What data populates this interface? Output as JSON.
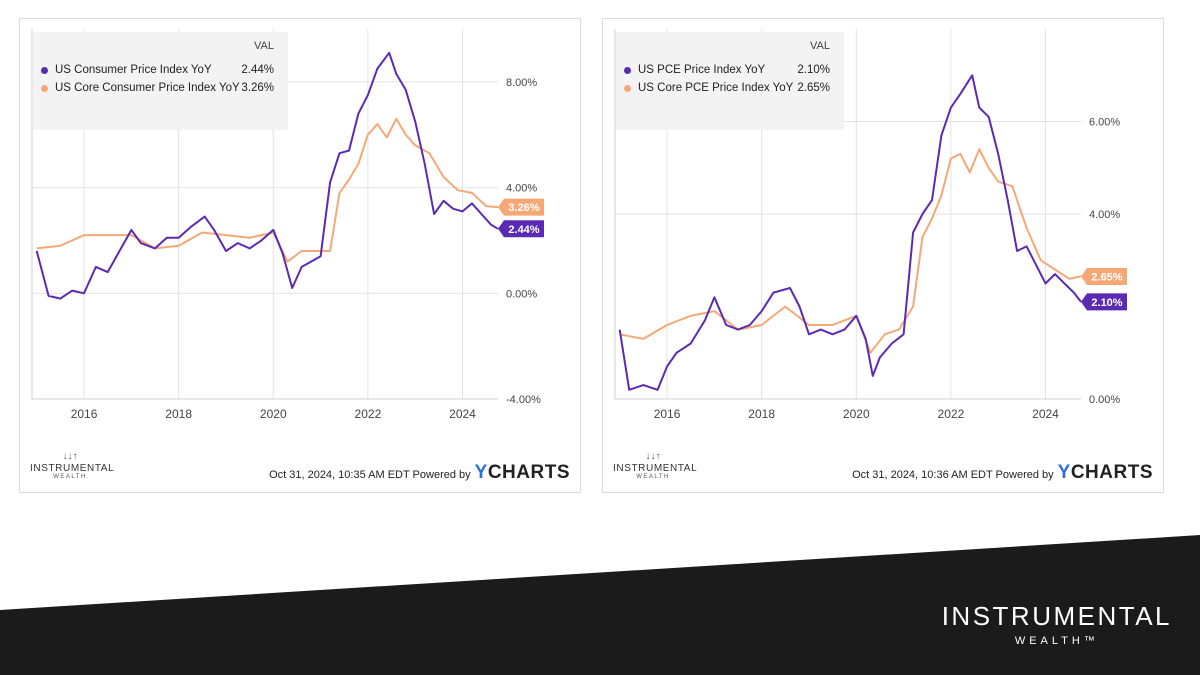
{
  "charts": [
    {
      "legend": {
        "header": "VAL",
        "series": [
          {
            "label": "US Consumer Price Index YoY",
            "value": "2.44%"
          },
          {
            "label": "US Core Consumer Price Index YoY",
            "value": "3.26%"
          }
        ]
      },
      "footer": {
        "timestamp": "Oct 31, 2024, 10:35 AM EDT Powered by",
        "brand_y": "Y",
        "brand_rest": "CHARTS"
      }
    },
    {
      "legend": {
        "header": "VAL",
        "series": [
          {
            "label": "US PCE Price Index YoY",
            "value": "2.10%"
          },
          {
            "label": "US Core PCE Price Index YoY",
            "value": "2.65%"
          }
        ]
      },
      "footer": {
        "timestamp": "Oct 31, 2024, 10:36 AM EDT Powered by",
        "brand_y": "Y",
        "brand_rest": "CHARTS"
      }
    }
  ],
  "mini_logo": {
    "arrows": "↓↓↑",
    "line1": "INSTRUMENTAL",
    "line2": "WEALTH"
  },
  "brand": {
    "line1": "INSTRUMENTAL",
    "line2": "WEALTH™"
  },
  "colors": {
    "purple": "#5b2ab5",
    "orange": "#f5a875",
    "band": "#1b1b1b",
    "grid": "#e2e2e2"
  },
  "chart_data": [
    {
      "type": "line",
      "title": "",
      "xlabel": "",
      "ylabel": "",
      "xlim": [
        2014.9,
        2024.75
      ],
      "ylim": [
        -4.0,
        10.0
      ],
      "y_ticks": [
        8.0,
        4.0,
        0.0,
        -4.0
      ],
      "y_tick_labels": [
        "8.00%",
        "4.00%",
        "0.00%",
        "-4.00%"
      ],
      "x_ticks": [
        2016,
        2018,
        2020,
        2022,
        2024
      ],
      "x_tick_labels": [
        "2016",
        "2018",
        "2020",
        "2022",
        "2024"
      ],
      "grid": true,
      "legend_position": "top-left",
      "series": [
        {
          "name": "US Consumer Price Index YoY",
          "color": "#5b2ab5",
          "end_label": "2.44%",
          "x": [
            2015.0,
            2015.25,
            2015.5,
            2015.75,
            2016.0,
            2016.25,
            2016.5,
            2016.75,
            2017.0,
            2017.2,
            2017.5,
            2017.75,
            2018.0,
            2018.25,
            2018.55,
            2018.75,
            2019.0,
            2019.25,
            2019.5,
            2019.75,
            2020.0,
            2020.2,
            2020.4,
            2020.6,
            2020.8,
            2021.0,
            2021.2,
            2021.4,
            2021.6,
            2021.8,
            2022.0,
            2022.2,
            2022.45,
            2022.6,
            2022.8,
            2023.0,
            2023.2,
            2023.4,
            2023.6,
            2023.8,
            2024.0,
            2024.2,
            2024.4,
            2024.6,
            2024.75
          ],
          "y": [
            1.6,
            -0.1,
            -0.2,
            0.1,
            0.0,
            1.0,
            0.8,
            1.6,
            2.4,
            1.9,
            1.7,
            2.1,
            2.1,
            2.5,
            2.9,
            2.4,
            1.6,
            1.9,
            1.7,
            2.0,
            2.4,
            1.5,
            0.2,
            1.0,
            1.2,
            1.4,
            4.2,
            5.3,
            5.4,
            6.8,
            7.5,
            8.5,
            9.1,
            8.3,
            7.7,
            6.5,
            4.9,
            3.0,
            3.5,
            3.2,
            3.1,
            3.4,
            3.0,
            2.6,
            2.44
          ]
        },
        {
          "name": "US Core Consumer Price Index YoY",
          "color": "#f5a875",
          "end_label": "3.26%",
          "x": [
            2015.0,
            2015.5,
            2016.0,
            2016.5,
            2017.0,
            2017.5,
            2018.0,
            2018.5,
            2019.0,
            2019.5,
            2020.0,
            2020.3,
            2020.6,
            2020.9,
            2021.2,
            2021.4,
            2021.6,
            2021.8,
            2022.0,
            2022.2,
            2022.4,
            2022.6,
            2022.8,
            2023.0,
            2023.3,
            2023.6,
            2023.9,
            2024.2,
            2024.5,
            2024.75
          ],
          "y": [
            1.7,
            1.8,
            2.2,
            2.2,
            2.2,
            1.7,
            1.8,
            2.3,
            2.2,
            2.1,
            2.3,
            1.2,
            1.6,
            1.6,
            1.6,
            3.8,
            4.3,
            4.9,
            6.0,
            6.4,
            5.9,
            6.6,
            6.0,
            5.6,
            5.3,
            4.4,
            3.9,
            3.8,
            3.3,
            3.26
          ]
        }
      ]
    },
    {
      "type": "line",
      "title": "",
      "xlabel": "",
      "ylabel": "",
      "xlim": [
        2014.9,
        2024.75
      ],
      "ylim": [
        0.0,
        8.0
      ],
      "y_ticks": [
        6.0,
        4.0,
        0.0
      ],
      "y_tick_labels": [
        "6.00%",
        "4.00%",
        "0.00%"
      ],
      "x_ticks": [
        2016,
        2018,
        2020,
        2022,
        2024
      ],
      "x_tick_labels": [
        "2016",
        "2018",
        "2020",
        "2022",
        "2024"
      ],
      "grid": true,
      "legend_position": "top-left",
      "series": [
        {
          "name": "US PCE Price Index YoY",
          "color": "#5b2ab5",
          "end_label": "2.10%",
          "x": [
            2015.0,
            2015.2,
            2015.5,
            2015.8,
            2016.0,
            2016.2,
            2016.5,
            2016.8,
            2017.0,
            2017.25,
            2017.5,
            2017.75,
            2018.0,
            2018.25,
            2018.6,
            2018.8,
            2019.0,
            2019.25,
            2019.5,
            2019.75,
            2020.0,
            2020.2,
            2020.35,
            2020.5,
            2020.75,
            2021.0,
            2021.2,
            2021.4,
            2021.6,
            2021.8,
            2022.0,
            2022.2,
            2022.45,
            2022.6,
            2022.8,
            2023.0,
            2023.2,
            2023.4,
            2023.6,
            2023.8,
            2024.0,
            2024.2,
            2024.4,
            2024.6,
            2024.75
          ],
          "y": [
            1.5,
            0.2,
            0.3,
            0.2,
            0.7,
            1.0,
            1.2,
            1.7,
            2.2,
            1.6,
            1.5,
            1.6,
            1.9,
            2.3,
            2.4,
            2.0,
            1.4,
            1.5,
            1.4,
            1.5,
            1.8,
            1.3,
            0.5,
            0.9,
            1.2,
            1.4,
            3.6,
            4.0,
            4.3,
            5.7,
            6.3,
            6.6,
            7.0,
            6.3,
            6.1,
            5.3,
            4.3,
            3.2,
            3.3,
            2.9,
            2.5,
            2.7,
            2.5,
            2.3,
            2.1
          ]
        },
        {
          "name": "US Core PCE Price Index YoY",
          "color": "#f5a875",
          "end_label": "2.65%",
          "x": [
            2015.0,
            2015.5,
            2016.0,
            2016.5,
            2017.0,
            2017.5,
            2018.0,
            2018.5,
            2019.0,
            2019.5,
            2020.0,
            2020.3,
            2020.6,
            2020.9,
            2021.2,
            2021.4,
            2021.6,
            2021.8,
            2022.0,
            2022.2,
            2022.4,
            2022.6,
            2022.8,
            2023.0,
            2023.3,
            2023.6,
            2023.9,
            2024.2,
            2024.5,
            2024.75
          ],
          "y": [
            1.4,
            1.3,
            1.6,
            1.8,
            1.9,
            1.5,
            1.6,
            2.0,
            1.6,
            1.6,
            1.8,
            1.0,
            1.4,
            1.5,
            2.0,
            3.5,
            3.9,
            4.4,
            5.2,
            5.3,
            4.9,
            5.4,
            5.0,
            4.7,
            4.6,
            3.7,
            3.0,
            2.8,
            2.6,
            2.65
          ]
        }
      ]
    }
  ]
}
